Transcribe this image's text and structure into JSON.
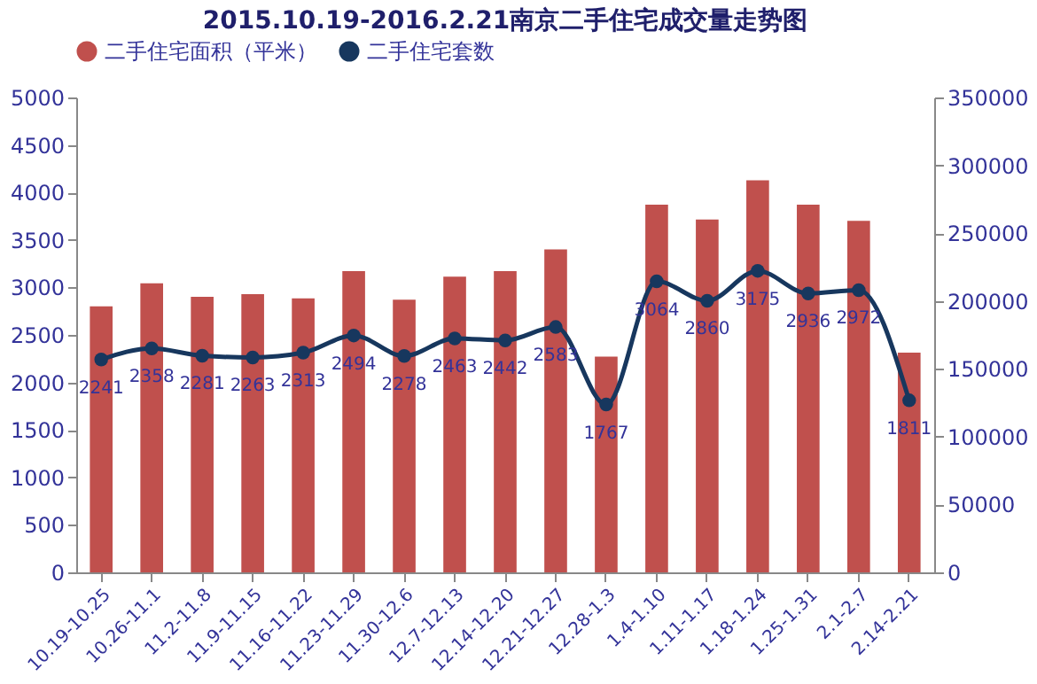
{
  "chart_data": {
    "type": "bar",
    "title": "2015.10.19-2016.2.21南京二手住宅成交量走势图",
    "categories": [
      "10.19-10.25",
      "10.26-11.1",
      "11.2-11.8",
      "11.9-11.15",
      "11.16-11.22",
      "11.23-11.29",
      "11.30-12.6",
      "12.7-12.13",
      "12.14-12.20",
      "12.21-12.27",
      "12.28-1.3",
      "1.4-1.10",
      "1.11-1.17",
      "1.18-1.24",
      "1.25-1.31",
      "2.1-2.7",
      "2.14-2.21"
    ],
    "series": [
      {
        "name": "二手住宅面积（平米）",
        "axis": "y2",
        "color": "#c0504d",
        "values": [
          196000,
          213000,
          203000,
          205000,
          202000,
          222000,
          201000,
          218000,
          222000,
          238000,
          159000,
          271000,
          260000,
          289000,
          271000,
          259000,
          162000
        ]
      },
      {
        "name": "二手住宅套数",
        "type": "line",
        "color": "#17375e",
        "marker": "circle",
        "values": [
          2241,
          2358,
          2281,
          2263,
          2313,
          2494,
          2278,
          2463,
          2442,
          2583,
          1767,
          3064,
          2860,
          3175,
          2936,
          2972,
          1811
        ],
        "value_labels": [
          "2241",
          "2358",
          "2281",
          "2263",
          "2313",
          "2494",
          "2278",
          "2463",
          "2442",
          "2583",
          "1767",
          "3064",
          "2860",
          "3175",
          "2936",
          "2972",
          "1811"
        ]
      }
    ],
    "ylim": [
      0,
      5000
    ],
    "yticks": [
      0,
      500,
      1000,
      1500,
      2000,
      2500,
      3000,
      3500,
      4000,
      4500,
      5000
    ],
    "y2lim": [
      0,
      350000
    ],
    "y2ticks": [
      0,
      50000,
      100000,
      150000,
      200000,
      250000,
      300000,
      350000
    ],
    "legend": "top",
    "grid": false
  }
}
